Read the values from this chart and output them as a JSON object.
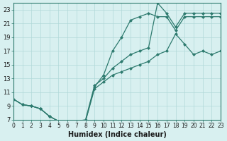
{
  "xlabel": "Humidex (Indice chaleur)",
  "bg_color": "#d8f0f0",
  "line_color": "#2d7a6e",
  "grid_color": "#b0d8d8",
  "xlim": [
    0,
    23
  ],
  "ylim": [
    7,
    24
  ],
  "xticks": [
    0,
    1,
    2,
    3,
    4,
    5,
    6,
    7,
    8,
    9,
    10,
    11,
    12,
    13,
    14,
    15,
    16,
    17,
    18,
    19,
    20,
    21,
    22,
    23
  ],
  "yticks": [
    7,
    9,
    11,
    13,
    15,
    17,
    19,
    21,
    23
  ],
  "line1_x": [
    0,
    1,
    2,
    3,
    4,
    5,
    6,
    7,
    8,
    9,
    10,
    11,
    12,
    13,
    14,
    15,
    16,
    17,
    18,
    19,
    20,
    21,
    22,
    23
  ],
  "line1_y": [
    10.0,
    9.2,
    9.0,
    8.6,
    7.5,
    6.8,
    6.8,
    6.8,
    6.8,
    11.5,
    12.5,
    13.5,
    14.0,
    14.5,
    15.0,
    15.5,
    16.5,
    17.0,
    19.5,
    18.0,
    16.5,
    17.0,
    16.5,
    17.0
  ],
  "line2_x": [
    0,
    1,
    2,
    3,
    4,
    5,
    6,
    7,
    8,
    9,
    10,
    11,
    12,
    13,
    14,
    15,
    16,
    17,
    18,
    19,
    20,
    21,
    22,
    23
  ],
  "line2_y": [
    10.0,
    9.2,
    9.0,
    8.6,
    7.5,
    6.8,
    6.8,
    6.8,
    6.8,
    11.8,
    13.5,
    17.0,
    19.0,
    21.5,
    22.0,
    22.5,
    22.0,
    22.0,
    20.0,
    22.0,
    22.0,
    22.0,
    22.0,
    22.0
  ],
  "line3_x": [
    0,
    1,
    2,
    3,
    4,
    5,
    6,
    7,
    8,
    9,
    10,
    11,
    12,
    13,
    14,
    15,
    16,
    17,
    18,
    19,
    20,
    21,
    22,
    23
  ],
  "line3_y": [
    10.0,
    9.2,
    9.0,
    8.6,
    7.5,
    6.8,
    6.8,
    6.8,
    7.0,
    12.0,
    13.0,
    14.5,
    15.5,
    16.5,
    17.0,
    17.5,
    24.0,
    22.5,
    20.5,
    22.5,
    22.5,
    22.5,
    22.5,
    22.5
  ]
}
